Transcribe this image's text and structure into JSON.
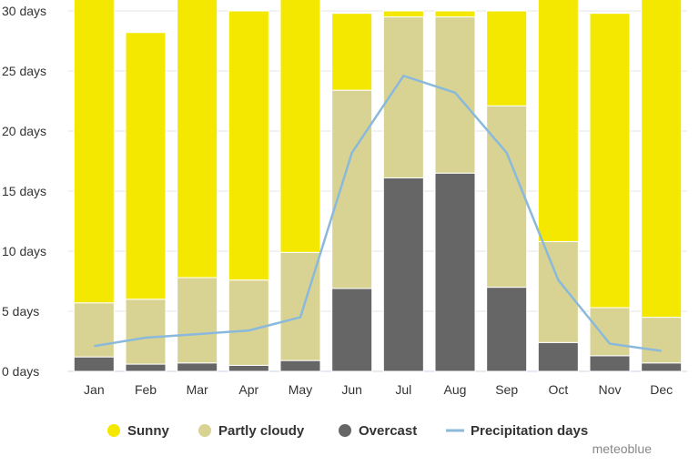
{
  "chart_data": {
    "type": "bar",
    "stacked": true,
    "categories": [
      "Jan",
      "Feb",
      "Mar",
      "Apr",
      "May",
      "Jun",
      "Jul",
      "Aug",
      "Sep",
      "Oct",
      "Nov",
      "Dec"
    ],
    "series": [
      {
        "name": "Overcast",
        "color": "#666666",
        "values": [
          1.2,
          0.6,
          0.7,
          0.5,
          0.9,
          6.9,
          16.1,
          16.5,
          7.0,
          2.4,
          1.3,
          0.7
        ]
      },
      {
        "name": "Partly cloudy",
        "color": "#d8d392",
        "values": [
          4.5,
          5.4,
          7.1,
          7.1,
          9.0,
          16.5,
          13.4,
          13.0,
          15.1,
          8.4,
          4.0,
          3.8
        ]
      },
      {
        "name": "Sunny",
        "color": "#f5e800",
        "values": [
          25.3,
          22.2,
          23.2,
          22.4,
          21.1,
          6.4,
          0.5,
          0.5,
          7.9,
          20.2,
          24.5,
          26.5
        ]
      }
    ],
    "line_series": {
      "name": "Precipitation days",
      "color": "#8ab9dc",
      "values": [
        2.1,
        2.8,
        3.1,
        3.4,
        4.5,
        18.2,
        24.6,
        23.2,
        18.2,
        7.6,
        2.3,
        1.7
      ]
    },
    "yaxis": {
      "ylim": [
        0,
        30
      ],
      "ticks": [
        0,
        5,
        10,
        15,
        20,
        25,
        30
      ],
      "tick_labels": [
        "0 days",
        "5 days",
        "10 days",
        "15 days",
        "20 days",
        "25 days",
        "30 days"
      ]
    },
    "legend": {
      "position": "bottom",
      "items": [
        {
          "label": "Sunny",
          "color": "#f5e800",
          "marker": "circle"
        },
        {
          "label": "Partly cloudy",
          "color": "#d8d392",
          "marker": "circle"
        },
        {
          "label": "Overcast",
          "color": "#666666",
          "marker": "circle"
        },
        {
          "label": "Precipitation days",
          "color": "#8ab9dc",
          "marker": "line"
        }
      ]
    },
    "grid": true,
    "credit": "meteoblue"
  }
}
